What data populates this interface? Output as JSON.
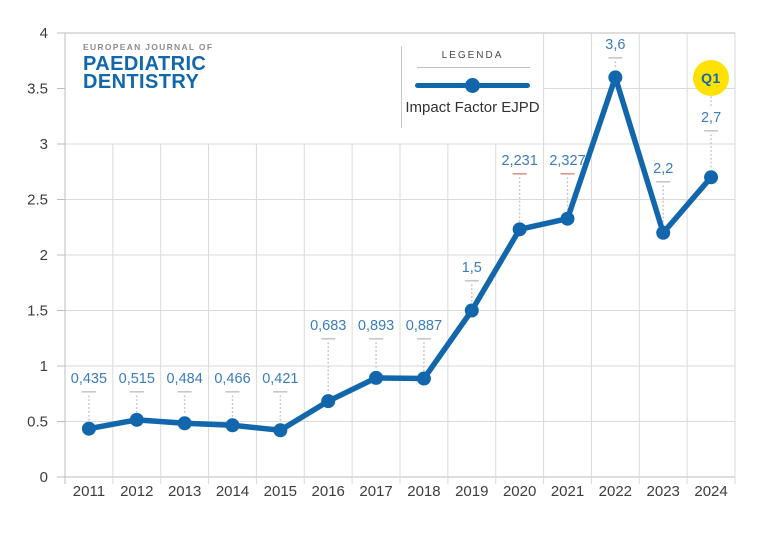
{
  "logo": {
    "eyebrow": "EUROPEAN JOURNAL OF",
    "title_line1": "PAEDIATRIC",
    "title_line2": "DENTISTRY"
  },
  "legend": {
    "title": "LEGENDA",
    "series_label": "Impact Factor EJPD"
  },
  "annotation_badge": "Q1",
  "colors": {
    "line_blue": "#1266ab",
    "value_label_blue": "#3b7cba",
    "logo_blue": "#1268ab",
    "badge_yellow": "#ffe103",
    "badge_text_blue": "#1268ab",
    "grid_gray": "#dadada",
    "axis_gray": "#bdbdbd",
    "axis_text": "#3d3d3d",
    "leader_gray": "#c8c8c8",
    "leader_salmon": "#d49a90"
  },
  "chart_data": {
    "type": "line",
    "title": "Impact Factor EJPD",
    "categories": [
      "2011",
      "2012",
      "2013",
      "2014",
      "2015",
      "2016",
      "2017",
      "2018",
      "2019",
      "2020",
      "2021",
      "2022",
      "2023",
      "2024"
    ],
    "series": [
      {
        "name": "Impact Factor EJPD",
        "values": [
          0.435,
          0.515,
          0.484,
          0.466,
          0.421,
          0.683,
          0.893,
          0.887,
          1.5,
          2.231,
          2.327,
          3.6,
          2.2,
          2.7
        ],
        "value_labels": [
          "0,435",
          "0,515",
          "0,484",
          "0,466",
          "0,421",
          "0,683",
          "0,893",
          "0,887",
          "1,5",
          "2,231",
          "2,327",
          "3,6",
          "2,2",
          "2,7"
        ]
      }
    ],
    "ylim": [
      0,
      4
    ],
    "ytick_labels": [
      "0",
      "0.5",
      "1",
      "1.5",
      "2",
      "2.5",
      "3",
      "3.5",
      "4"
    ],
    "grid": true,
    "legend_position": "top-center",
    "annotations": [
      {
        "text": "Q1",
        "category": "2024",
        "style": "yellow-circle"
      }
    ]
  }
}
